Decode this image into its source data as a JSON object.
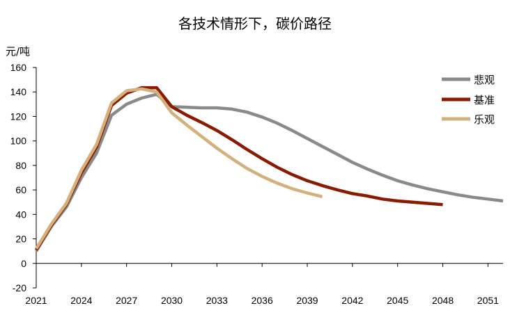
{
  "chart_data": {
    "type": "line",
    "title": "各技术情形下，碳价路径",
    "xlabel": "",
    "ylabel": "元/吨",
    "xlim": [
      2021,
      2052
    ],
    "ylim": [
      -20,
      160
    ],
    "yticks": [
      -20,
      0,
      20,
      40,
      60,
      80,
      100,
      120,
      140,
      160
    ],
    "xticks": [
      2021,
      2024,
      2027,
      2030,
      2033,
      2036,
      2039,
      2042,
      2045,
      2048,
      2051
    ],
    "grid": false,
    "legend_position": "right",
    "series": [
      {
        "name": "悲观",
        "color": "#8a8a8a",
        "x": [
          2021,
          2022,
          2023,
          2024,
          2025,
          2026,
          2027,
          2028,
          2029,
          2030,
          2031,
          2032,
          2033,
          2034,
          2035,
          2036,
          2037,
          2038,
          2039,
          2040,
          2041,
          2042,
          2043,
          2044,
          2045,
          2046,
          2047,
          2048,
          2049,
          2050,
          2051,
          2052
        ],
        "values": [
          10,
          30,
          46,
          70,
          90,
          121,
          130,
          135,
          138,
          128,
          127.5,
          127,
          127,
          126,
          123.5,
          119.5,
          114.5,
          108.5,
          102,
          95.5,
          89,
          82.5,
          77,
          72,
          67.5,
          64,
          61,
          58.5,
          56,
          54,
          52.5,
          51
        ]
      },
      {
        "name": "基准",
        "color": "#8b1a00",
        "x": [
          2021,
          2022,
          2023,
          2024,
          2025,
          2026,
          2027,
          2028,
          2029,
          2030,
          2031,
          2032,
          2033,
          2034,
          2035,
          2036,
          2037,
          2038,
          2039,
          2040,
          2041,
          2042,
          2043,
          2044,
          2045,
          2046,
          2047,
          2048
        ],
        "values": [
          11,
          31,
          48,
          74,
          95,
          129,
          139,
          143.5,
          143.5,
          128,
          121,
          115,
          108.5,
          101,
          93,
          85.5,
          78.5,
          72.5,
          67.5,
          63.5,
          60,
          57,
          55,
          52.5,
          51,
          50,
          49,
          48
        ]
      },
      {
        "name": "乐观",
        "color": "#d4b07c",
        "x": [
          2021,
          2022,
          2023,
          2024,
          2025,
          2026,
          2027,
          2028,
          2029,
          2030,
          2031,
          2032,
          2033,
          2034,
          2035,
          2036,
          2037,
          2038,
          2039,
          2040
        ],
        "values": [
          12,
          32,
          49,
          76,
          97,
          131,
          141,
          142.5,
          140,
          123,
          113,
          103.5,
          94,
          85.5,
          77.5,
          71,
          65.5,
          61,
          57.5,
          54.5
        ]
      }
    ]
  }
}
